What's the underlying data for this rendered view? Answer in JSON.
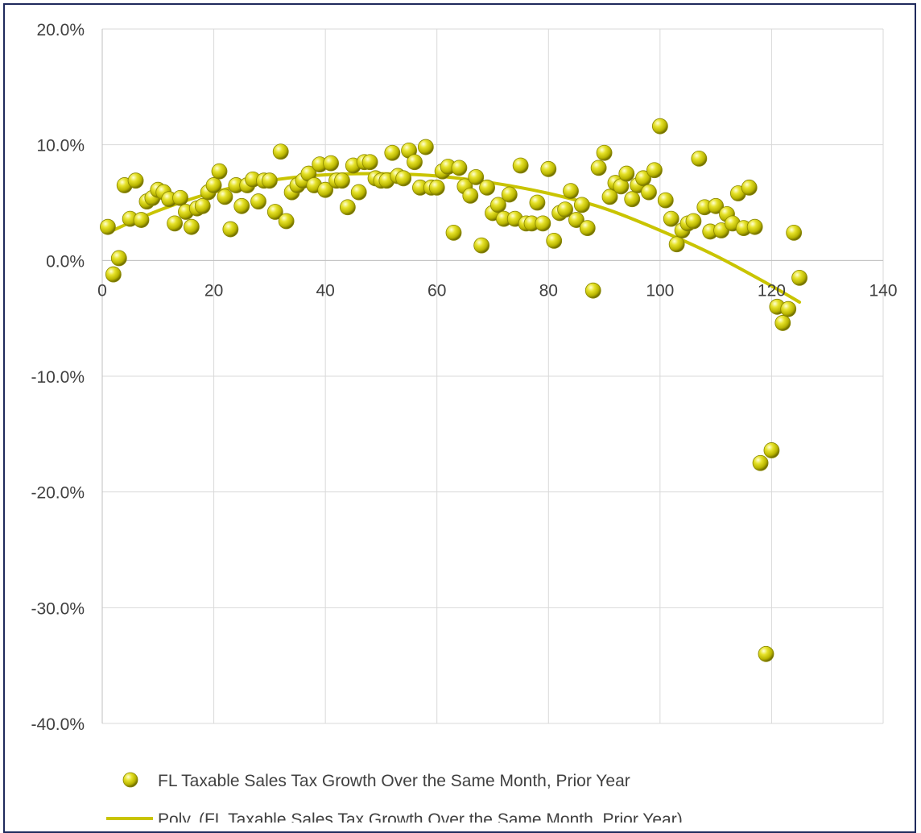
{
  "chart_data": {
    "type": "scatter",
    "title": "",
    "xlabel": "",
    "ylabel": "",
    "xlim": [
      0,
      140
    ],
    "ylim": [
      -0.4,
      0.2
    ],
    "x_ticks": [
      0,
      20,
      40,
      60,
      80,
      100,
      120,
      140
    ],
    "x_tick_labels": [
      "0",
      "20",
      "40",
      "60",
      "80",
      "100",
      "120",
      "140"
    ],
    "y_ticks": [
      0.2,
      0.1,
      0.0,
      -0.1,
      -0.2,
      -0.3,
      -0.4
    ],
    "y_tick_labels": [
      "20.0%",
      "10.0%",
      "0.0%",
      "-10.0%",
      "-20.0%",
      "-30.0%",
      "-40.0%"
    ],
    "grid": true,
    "legend_position": "bottom",
    "colors": {
      "marker": "#c8c400",
      "marker_dark": "#6e6c00",
      "marker_light": "#ffffc0",
      "trendline": "#c9c400",
      "grid": "#d9d9d9",
      "border": "#1f2a5c"
    },
    "series": [
      {
        "name": "FL Taxable Sales Tax Growth Over the Same Month, Prior Year",
        "kind": "scatter",
        "points": [
          [
            1,
            0.029
          ],
          [
            2,
            -0.012
          ],
          [
            3,
            0.002
          ],
          [
            4,
            0.065
          ],
          [
            5,
            0.036
          ],
          [
            6,
            0.069
          ],
          [
            7,
            0.035
          ],
          [
            8,
            0.051
          ],
          [
            9,
            0.054
          ],
          [
            10,
            0.061
          ],
          [
            11,
            0.059
          ],
          [
            12,
            0.053
          ],
          [
            13,
            0.032
          ],
          [
            14,
            0.054
          ],
          [
            15,
            0.042
          ],
          [
            16,
            0.029
          ],
          [
            17,
            0.045
          ],
          [
            18,
            0.047
          ],
          [
            19,
            0.059
          ],
          [
            20,
            0.065
          ],
          [
            21,
            0.077
          ],
          [
            22,
            0.055
          ],
          [
            23,
            0.027
          ],
          [
            24,
            0.065
          ],
          [
            25,
            0.047
          ],
          [
            26,
            0.065
          ],
          [
            27,
            0.07
          ],
          [
            28,
            0.051
          ],
          [
            29,
            0.069
          ],
          [
            30,
            0.069
          ],
          [
            31,
            0.042
          ],
          [
            32,
            0.094
          ],
          [
            33,
            0.034
          ],
          [
            34,
            0.059
          ],
          [
            35,
            0.065
          ],
          [
            36,
            0.069
          ],
          [
            37,
            0.075
          ],
          [
            38,
            0.065
          ],
          [
            39,
            0.083
          ],
          [
            40,
            0.061
          ],
          [
            41,
            0.084
          ],
          [
            42,
            0.069
          ],
          [
            43,
            0.069
          ],
          [
            44,
            0.046
          ],
          [
            45,
            0.082
          ],
          [
            46,
            0.059
          ],
          [
            47,
            0.085
          ],
          [
            48,
            0.085
          ],
          [
            49,
            0.071
          ],
          [
            50,
            0.069
          ],
          [
            51,
            0.069
          ],
          [
            52,
            0.093
          ],
          [
            53,
            0.073
          ],
          [
            54,
            0.071
          ],
          [
            55,
            0.095
          ],
          [
            56,
            0.085
          ],
          [
            57,
            0.063
          ],
          [
            58,
            0.098
          ],
          [
            59,
            0.063
          ],
          [
            60,
            0.063
          ],
          [
            61,
            0.077
          ],
          [
            62,
            0.081
          ],
          [
            63,
            0.024
          ],
          [
            64,
            0.08
          ],
          [
            65,
            0.064
          ],
          [
            66,
            0.056
          ],
          [
            67,
            0.072
          ],
          [
            68,
            0.013
          ],
          [
            69,
            0.063
          ],
          [
            70,
            0.041
          ],
          [
            71,
            0.048
          ],
          [
            72,
            0.036
          ],
          [
            73,
            0.057
          ],
          [
            74,
            0.036
          ],
          [
            75,
            0.082
          ],
          [
            76,
            0.032
          ],
          [
            77,
            0.032
          ],
          [
            78,
            0.05
          ],
          [
            79,
            0.032
          ],
          [
            80,
            0.079
          ],
          [
            81,
            0.017
          ],
          [
            82,
            0.041
          ],
          [
            83,
            0.044
          ],
          [
            84,
            0.06
          ],
          [
            85,
            0.035
          ],
          [
            86,
            0.048
          ],
          [
            87,
            0.028
          ],
          [
            88,
            -0.026
          ],
          [
            89,
            0.08
          ],
          [
            90,
            0.093
          ],
          [
            91,
            0.055
          ],
          [
            92,
            0.067
          ],
          [
            93,
            0.064
          ],
          [
            94,
            0.075
          ],
          [
            95,
            0.053
          ],
          [
            96,
            0.065
          ],
          [
            97,
            0.071
          ],
          [
            98,
            0.059
          ],
          [
            99,
            0.078
          ],
          [
            100,
            0.116
          ],
          [
            101,
            0.052
          ],
          [
            102,
            0.036
          ],
          [
            103,
            0.014
          ],
          [
            104,
            0.026
          ],
          [
            105,
            0.032
          ],
          [
            106,
            0.034
          ],
          [
            107,
            0.088
          ],
          [
            108,
            0.046
          ],
          [
            109,
            0.025
          ],
          [
            110,
            0.047
          ],
          [
            111,
            0.026
          ],
          [
            112,
            0.04
          ],
          [
            113,
            0.032
          ],
          [
            114,
            0.058
          ],
          [
            115,
            0.028
          ],
          [
            116,
            0.063
          ],
          [
            117,
            0.029
          ],
          [
            118,
            -0.175
          ],
          [
            119,
            -0.34
          ],
          [
            120,
            -0.164
          ],
          [
            121,
            -0.04
          ],
          [
            122,
            -0.054
          ],
          [
            123,
            -0.042
          ],
          [
            124,
            0.024
          ],
          [
            125,
            -0.015
          ]
        ]
      },
      {
        "name": "Poly. (FL Taxable Sales Tax Growth Over the Same Month, Prior Year)",
        "kind": "trendline",
        "points": [
          [
            1,
            0.024
          ],
          [
            10,
            0.043
          ],
          [
            20,
            0.059
          ],
          [
            30,
            0.069
          ],
          [
            40,
            0.074
          ],
          [
            50,
            0.075
          ],
          [
            60,
            0.073
          ],
          [
            70,
            0.067
          ],
          [
            80,
            0.058
          ],
          [
            90,
            0.045
          ],
          [
            100,
            0.026
          ],
          [
            110,
            0.004
          ],
          [
            120,
            -0.022
          ],
          [
            125,
            -0.036
          ]
        ]
      }
    ]
  }
}
